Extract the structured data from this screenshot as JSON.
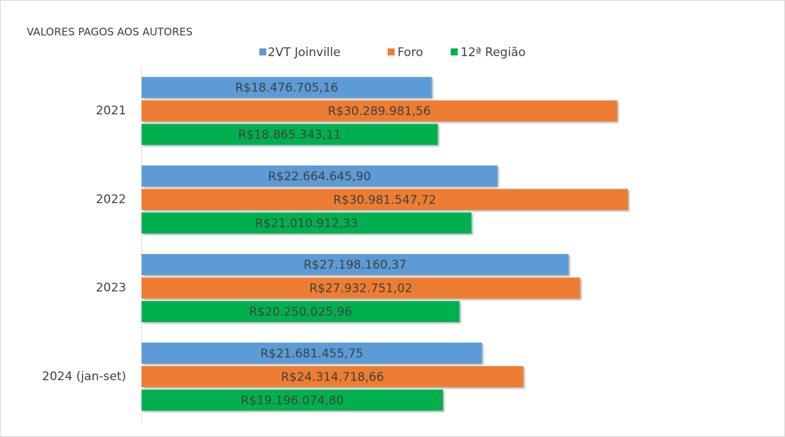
{
  "chart_data": {
    "type": "bar",
    "orientation": "horizontal",
    "title": "VALORES PAGOS AOS AUTORES",
    "categories": [
      "2021",
      "2022",
      "2023",
      "2024 (jan-set)"
    ],
    "series": [
      {
        "name": "2VT Joinville",
        "color": "#5b9bd5",
        "values": [
          18476705.16,
          22664645.9,
          27198160.37,
          21681455.75
        ],
        "value_labels": [
          "R$18.476.705,16",
          "R$22.664.645,90",
          "R$27.198.160,37",
          "R$21.681.455,75"
        ]
      },
      {
        "name": "Foro",
        "color": "#ed7d31",
        "values": [
          30289981.56,
          30981547.72,
          27932751.02,
          24314718.66
        ],
        "value_labels": [
          "R$30.289.981,56",
          "R$30.981.547,72",
          "R$27.932.751,02",
          "R$24.314.718,66"
        ]
      },
      {
        "name": "12ª Região",
        "color": "#00b050",
        "values": [
          18865343.11,
          21010912.33,
          20250025.96,
          19196074.8
        ],
        "value_labels": [
          "R$18.865.343,11",
          "R$21.010.912,33",
          "R$20.250.025,96",
          "R$19.196.074,80"
        ]
      }
    ],
    "xlim": [
      0,
      35000000
    ],
    "legend": "top"
  }
}
